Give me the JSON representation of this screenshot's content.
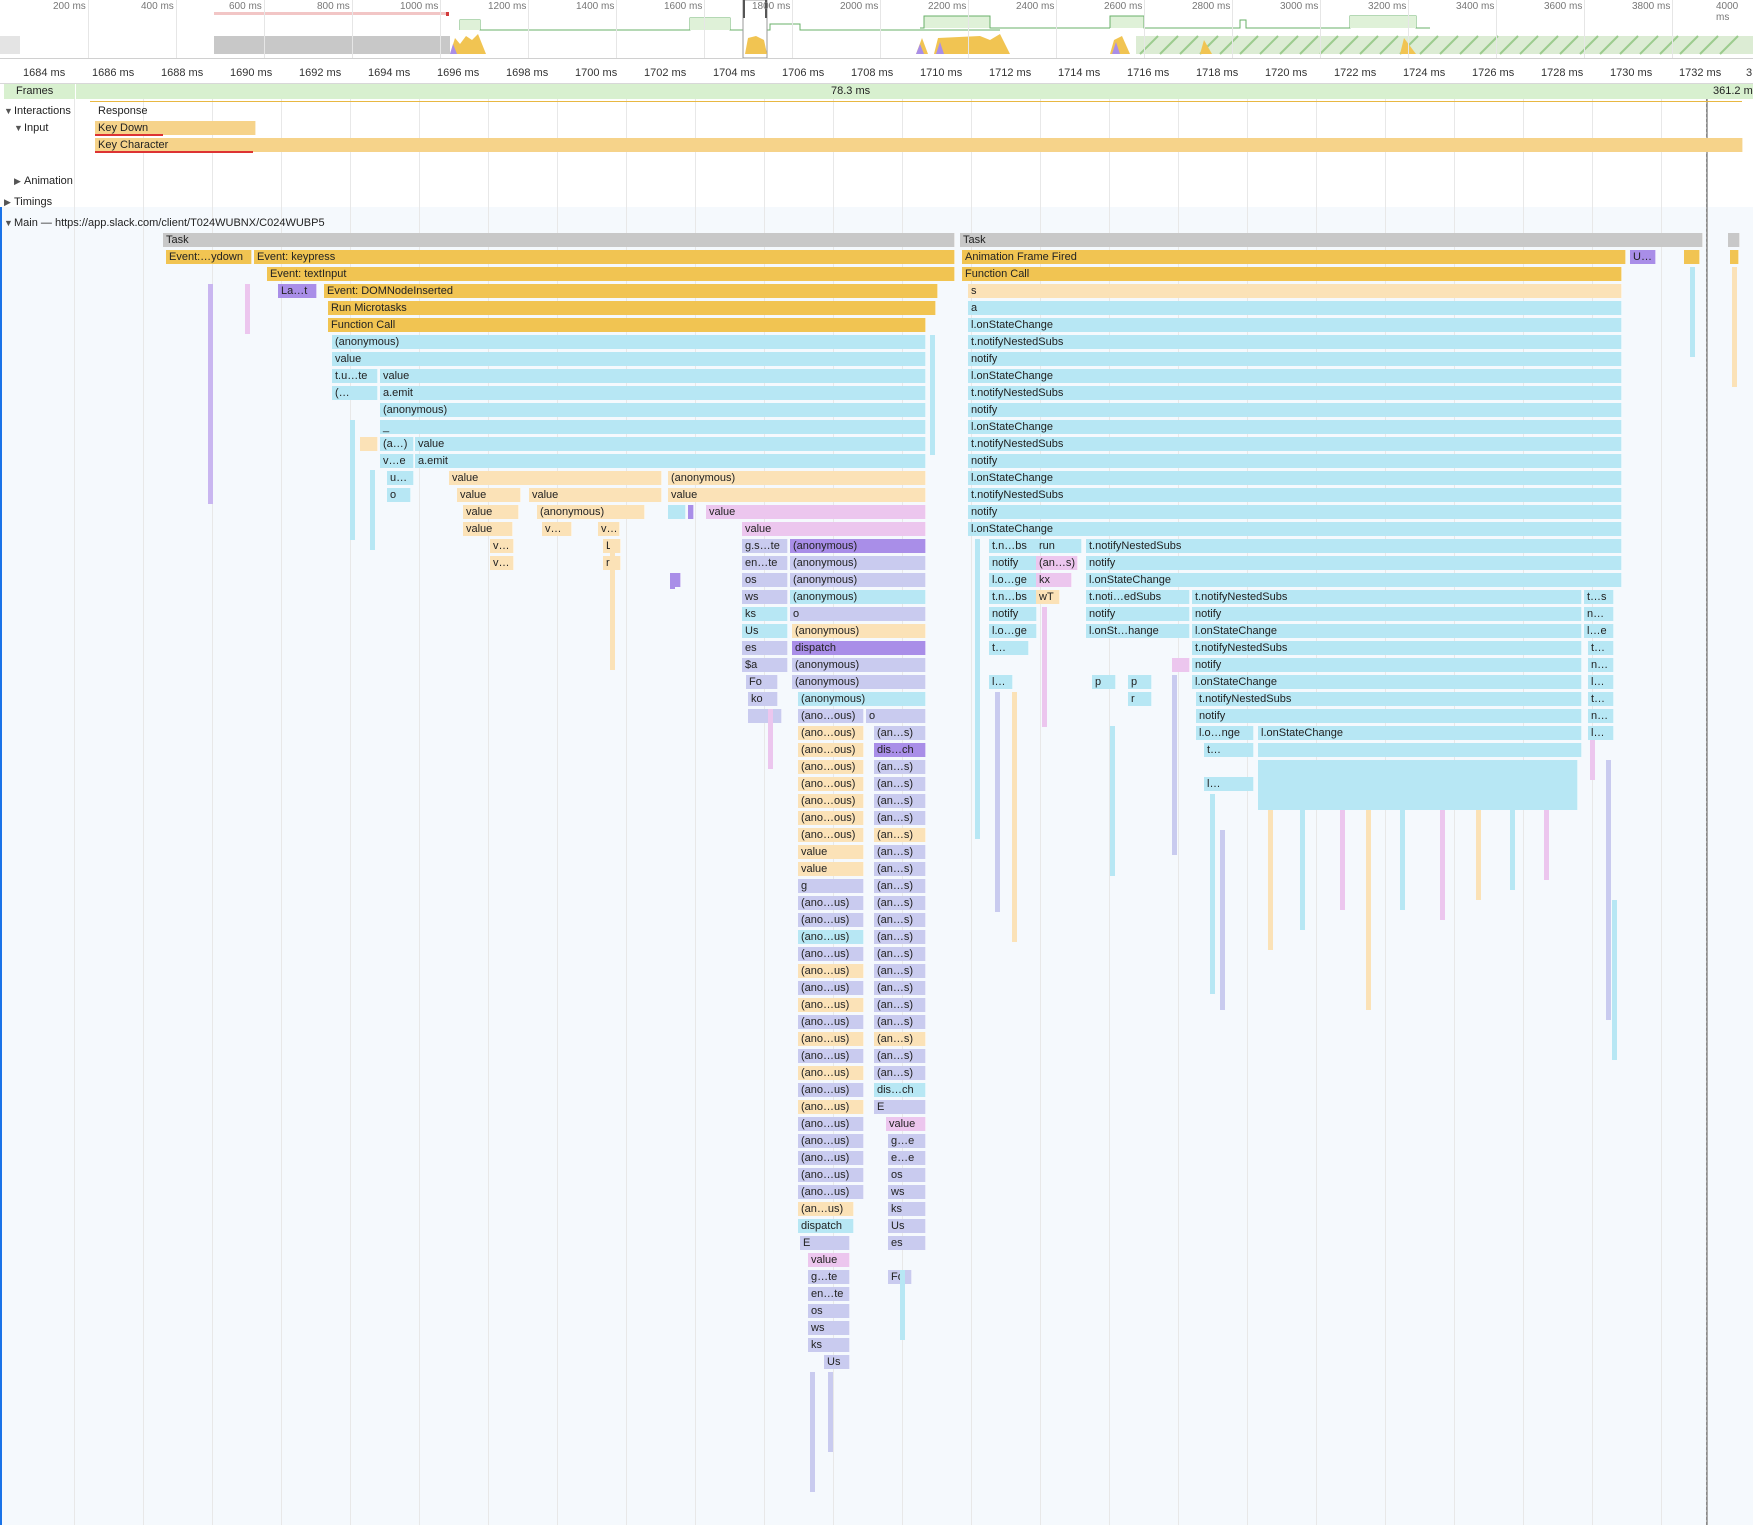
{
  "overview": {
    "ticks": [
      "200 ms",
      "400 ms",
      "600 ms",
      "800 ms",
      "1000 ms",
      "1200 ms",
      "1400 ms",
      "1600 ms",
      "1800 ms",
      "2000 ms",
      "2200 ms",
      "2400 ms",
      "2600 ms",
      "2800 ms",
      "3000 ms",
      "3200 ms",
      "3400 ms",
      "3600 ms",
      "3800 ms",
      "4000 ms"
    ]
  },
  "ruler": {
    "ticks": [
      "1684 ms",
      "1686 ms",
      "1688 ms",
      "1690 ms",
      "1692 ms",
      "1694 ms",
      "1696 ms",
      "1698 ms",
      "1700 ms",
      "1702 ms",
      "1704 ms",
      "1706 ms",
      "1708 ms",
      "1710 ms",
      "1712 ms",
      "1714 ms",
      "1716 ms",
      "1718 ms",
      "1720 ms",
      "1722 ms",
      "1724 ms",
      "1726 ms",
      "1728 ms",
      "1730 ms",
      "1732 ms",
      "3"
    ]
  },
  "tracks": {
    "frames_label": "Frames",
    "frame_value": "78.3 ms",
    "frame_value_right": "361.2 m",
    "interactions_label": "Interactions",
    "response_label": "Response",
    "input_label": "Input",
    "key_down": "Key Down",
    "key_character": "Key Character",
    "animation_label": "Animation",
    "timings_label": "Timings",
    "main_label": "Main — https://app.slack.com/client/T024WUBNX/C024WUBP5"
  },
  "flame_left": {
    "task": "Task",
    "r1": [
      "Event:…ydown",
      "Event: keypress"
    ],
    "r2": "Event: textInput",
    "r3": [
      "La…t",
      "Event: DOMNodeInserted"
    ],
    "r4": "Run Microtasks",
    "r5": "Function Call",
    "r6": "(anonymous)",
    "r7": "value",
    "r8": [
      "t.u…te",
      "value"
    ],
    "r9": [
      "(…",
      "a.emit"
    ],
    "r10": "(anonymous)",
    "r11": "_",
    "r12": [
      "(a…)",
      "value"
    ],
    "r13": [
      "v…e",
      "a.emit"
    ],
    "r14": [
      "u…",
      "value",
      "(anonymous)"
    ],
    "r15": [
      "o",
      "value",
      "value",
      "value"
    ],
    "r16": [
      "value",
      "(anonymous)",
      "value"
    ],
    "r17": [
      "value",
      "v…",
      "v…",
      "value"
    ],
    "r18": [
      "v…",
      "L",
      "g.s…te",
      "(anonymous)"
    ],
    "r19": [
      "v…",
      "r",
      "en…te",
      "(anonymous)"
    ],
    "r20": [
      "os",
      "(anonymous)"
    ],
    "r21": [
      "ws",
      "(anonymous)"
    ],
    "r22": [
      "ks",
      "o"
    ],
    "r23": [
      "Us",
      "(anonymous)"
    ],
    "r24": [
      "es",
      "dispatch"
    ],
    "r25": [
      "$a",
      "(anonymous)"
    ],
    "r26": [
      "Fo",
      "(anonymous)"
    ],
    "r27": [
      "ko",
      "(anonymous)"
    ],
    "r28": [
      "(ano…ous)",
      "o"
    ],
    "r29": [
      "(ano…ous)",
      "(an…s)"
    ],
    "r30": [
      "(ano…ous)",
      "dis…ch"
    ],
    "r31": [
      "(ano…ous)",
      "(an…s)"
    ],
    "r32": [
      "(ano…ous)",
      "(an…s)"
    ],
    "r33": [
      "(ano…ous)",
      "(an…s)"
    ],
    "r34": [
      "(ano…ous)",
      "(an…s)"
    ],
    "r35": [
      "(ano…ous)",
      "(an…s)"
    ],
    "r36": [
      "value",
      "(an…s)"
    ],
    "r37": [
      "value",
      "(an…s)"
    ],
    "r38": [
      "g",
      "(an…s)"
    ],
    "r39": [
      "(ano…us)",
      "(an…s)"
    ],
    "r40": [
      "(ano…us)",
      "(an…s)"
    ],
    "r41": [
      "(ano…us)",
      "(an…s)"
    ],
    "r42": [
      "(ano…us)",
      "(an…s)"
    ],
    "r43": [
      "(ano…us)",
      "(an…s)"
    ],
    "r44": [
      "(ano…us)",
      "(an…s)"
    ],
    "r45": [
      "(ano…us)",
      "(an…s)"
    ],
    "r46": [
      "(ano…us)",
      "(an…s)"
    ],
    "r47": [
      "(ano…us)",
      "(an…s)"
    ],
    "r48": [
      "(ano…us)",
      "(an…s)"
    ],
    "r49": [
      "(ano…us)",
      "(an…s)"
    ],
    "r50": [
      "(ano…us)",
      "dis…ch"
    ],
    "r51": [
      "(ano…us)",
      "E"
    ],
    "r52": [
      "(ano…us)",
      "value"
    ],
    "r53": [
      "(ano…us)",
      "g…e"
    ],
    "r54": [
      "(ano…us)",
      "e…e"
    ],
    "r55": [
      "(ano…us)",
      "os"
    ],
    "r56": [
      "(ano…us)",
      "ws"
    ],
    "r57": [
      "(an…us)",
      "ks"
    ],
    "r58": [
      "dispatch",
      "Us"
    ],
    "r59": [
      "E",
      "es"
    ],
    "r60": "value",
    "r61": [
      "g…te",
      "Fo"
    ],
    "r62": "en…te",
    "r63": "os",
    "r64": "ws",
    "r65": "ks",
    "r66": "Us"
  },
  "flame_right": {
    "task": "Task",
    "r1": [
      "Animation Frame Fired",
      "U…"
    ],
    "r2": "Function Call",
    "r3": "s",
    "r4": "a",
    "r5": "l.onStateChange",
    "r6": "t.notifyNestedSubs",
    "r7": "notify",
    "r8": "l.onStateChange",
    "r9": "t.notifyNestedSubs",
    "r10": "notify",
    "r11": "l.onStateChange",
    "r12": "t.notifyNestedSubs",
    "r13": "notify",
    "r14": "l.onStateChange",
    "r15": "t.notifyNestedSubs",
    "r16": "notify",
    "r17": "l.onStateChange",
    "r18": [
      "t.n…bs",
      "run",
      "t.notifyNestedSubs"
    ],
    "r19": [
      "notify",
      "(an…s)",
      "notify"
    ],
    "r20": [
      "l.o…ge",
      "kx",
      "l.onStateChange"
    ],
    "r21": [
      "t.n…bs",
      "wT",
      "t.noti…edSubs",
      "t.notifyNestedSubs",
      "t…s"
    ],
    "r22": [
      "notify",
      "notify",
      "notify",
      "n…"
    ],
    "r23": [
      "l.o…ge",
      "l.onSt…hange",
      "l.onStateChange",
      "l…e"
    ],
    "r24": [
      "t…",
      "t.notifyNestedSubs",
      "t…"
    ],
    "r25": [
      "notify",
      "n…"
    ],
    "r26": [
      "l…",
      "p",
      "p",
      "l.onStateChange",
      "l…"
    ],
    "r27": [
      "r",
      "t.notifyNestedSubs",
      "t…"
    ],
    "r28": [
      "notify",
      "n…"
    ],
    "r29": [
      "l.o…nge",
      "l.onStateChange",
      "l…"
    ],
    "r30": "t…",
    "r31": "l…"
  }
}
